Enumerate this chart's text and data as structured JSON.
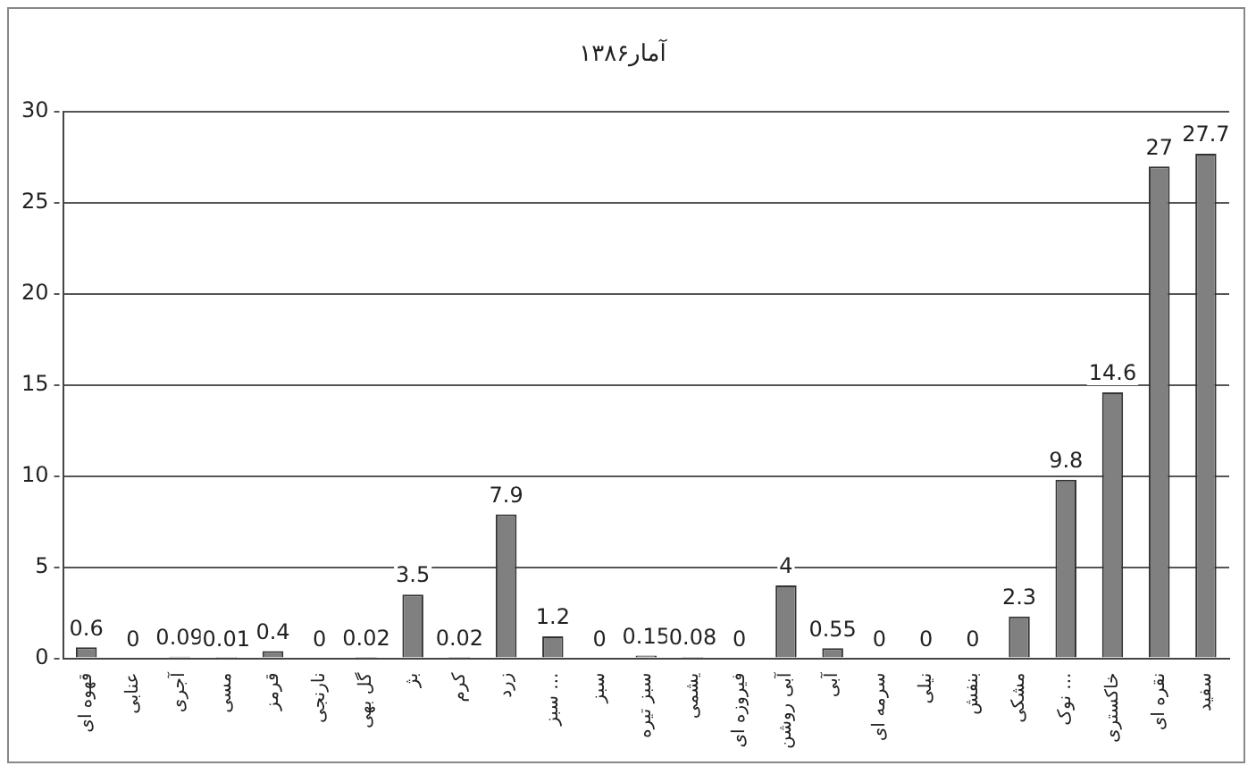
{
  "chart_data": {
    "type": "bar",
    "title": "آمار۱۳۸۶",
    "categories": [
      "قهوه ای",
      "عنابی",
      "آجری",
      "مسی",
      "قرمز",
      "نارنجی",
      "گل بهی",
      "بژ",
      "کرم",
      "زرد",
      "سبز ...",
      "سبز",
      "سبز تیره",
      "یشمی",
      "فیروزه ای",
      "آبی روشن",
      "آبی",
      "سرمه ای",
      "نیلی",
      "بنفش",
      "مشکی",
      "نوک ...",
      "خاکستری",
      "نقره ای",
      "سفید"
    ],
    "values": [
      0.6,
      0,
      0.09,
      0.01,
      0.4,
      0,
      0.02,
      3.5,
      0.02,
      7.9,
      1.2,
      0,
      0.15,
      0.08,
      0,
      4,
      0.55,
      0,
      0,
      0,
      2.3,
      9.8,
      14.6,
      27,
      27.7
    ],
    "color": "#808080",
    "ylim": [
      0,
      30
    ],
    "yticks": [
      0,
      5,
      10,
      15,
      20,
      25,
      30
    ],
    "grid": "y",
    "data_labels": true,
    "legend": false
  }
}
